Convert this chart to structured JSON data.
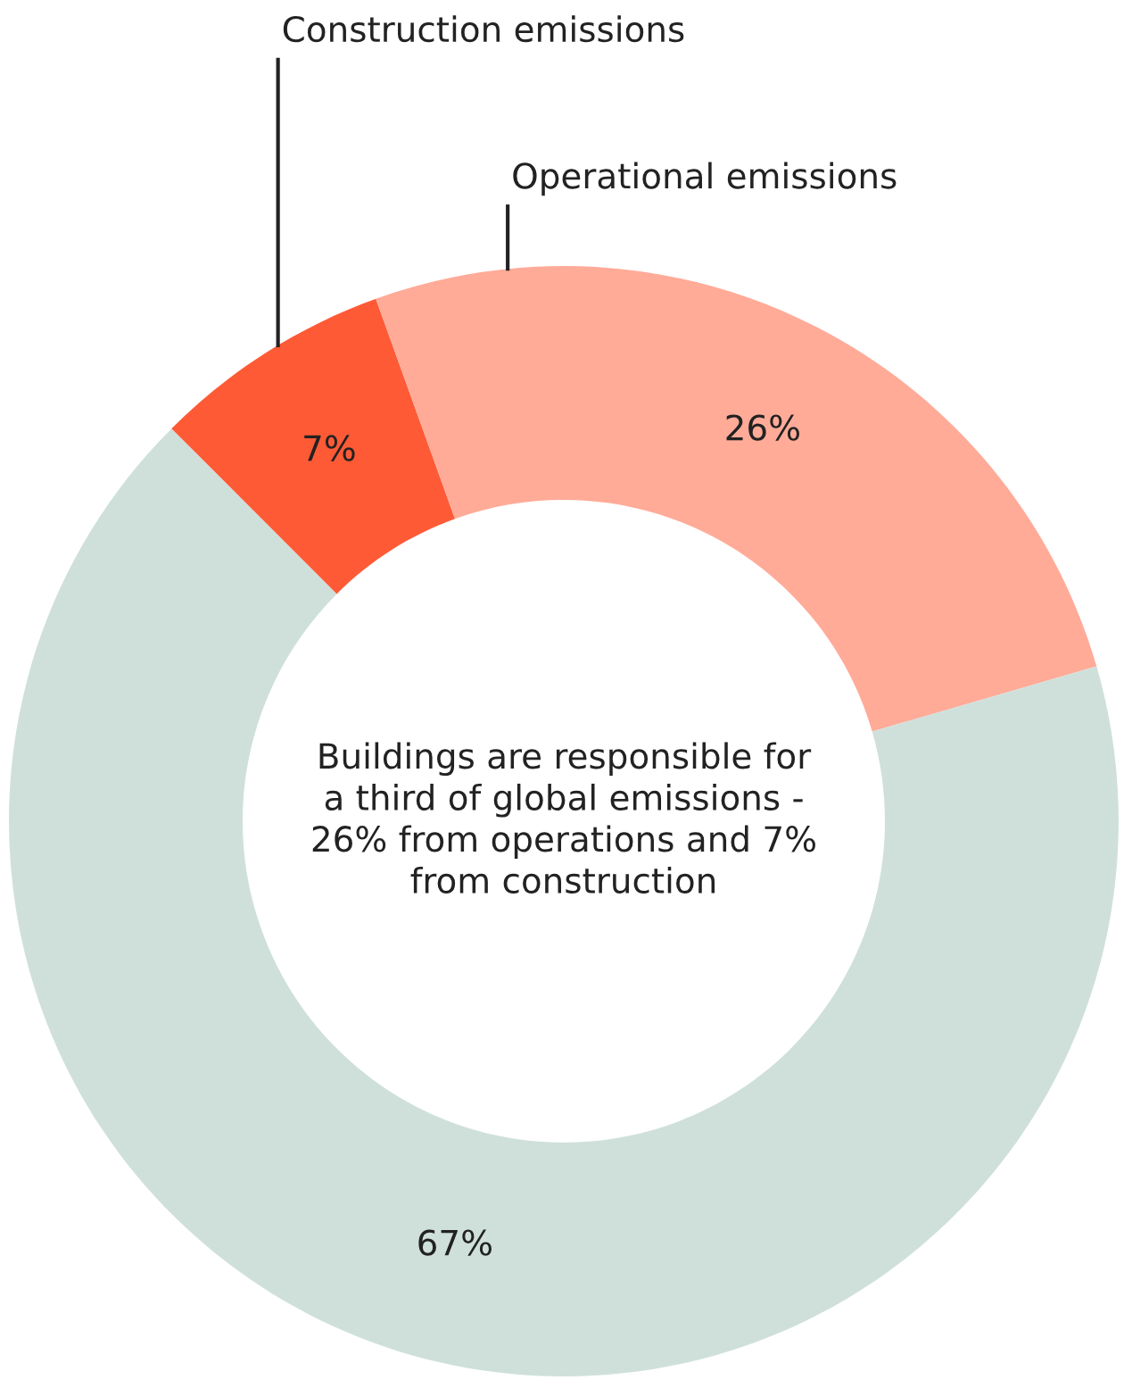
{
  "chart_data": {
    "type": "donut",
    "categories": [
      "Construction emissions",
      "Operational emissions",
      null
    ],
    "values": [
      7,
      26,
      67
    ],
    "colors": [
      "#ff5a36",
      "#ffab98",
      "#cfe0db"
    ],
    "value_labels": [
      "7%",
      "26%",
      "67%"
    ],
    "annotations": [
      "Buildings are responsible for\na third of global emissions -\n26% from operations and 7%\nfrom construction"
    ],
    "legend": false
  }
}
